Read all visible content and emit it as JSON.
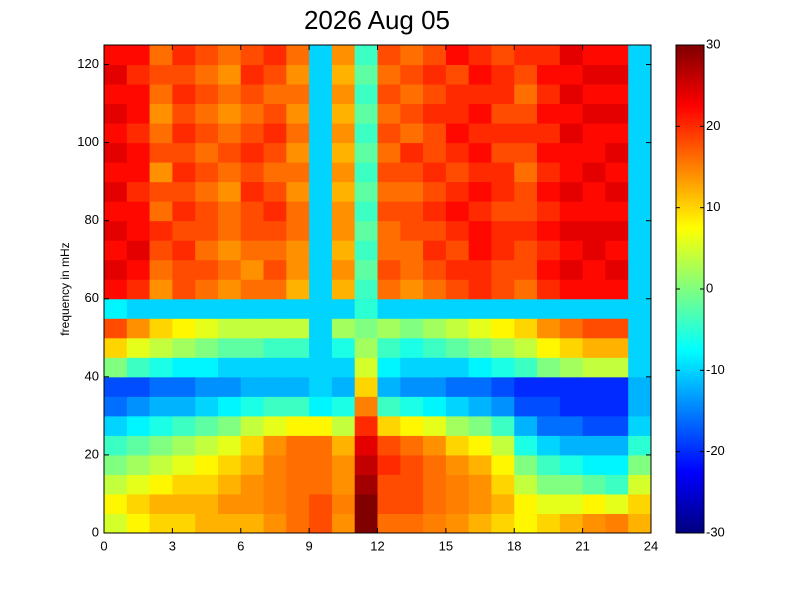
{
  "chart_data": {
    "type": "heatmap",
    "title": "2026 Aug 05",
    "ylabel": "frequency in mHz",
    "colormap": "jet",
    "xbins": [
      0,
      1,
      2,
      3,
      4,
      5,
      6,
      7,
      8,
      9,
      10,
      11,
      12,
      13,
      14,
      15,
      16,
      17,
      18,
      19,
      20,
      21,
      22,
      23,
      24
    ],
    "ybins": [
      0,
      5,
      10,
      15,
      20,
      25,
      30,
      35,
      40,
      45,
      50,
      55,
      60,
      65,
      70,
      75,
      80,
      85,
      90,
      95,
      100,
      105,
      110,
      115,
      120,
      125
    ],
    "z": [
      [
        5,
        8,
        10,
        10,
        12,
        12,
        12,
        14,
        16,
        18,
        14,
        30,
        16,
        16,
        15,
        14,
        12,
        10,
        8,
        10,
        12,
        14,
        15,
        12
      ],
      [
        8,
        10,
        12,
        12,
        12,
        14,
        14,
        15,
        16,
        18,
        15,
        30,
        18,
        18,
        16,
        15,
        14,
        12,
        8,
        6,
        6,
        8,
        6,
        10
      ],
      [
        4,
        6,
        8,
        10,
        10,
        12,
        14,
        15,
        16,
        16,
        14,
        28,
        18,
        18,
        16,
        15,
        14,
        10,
        4,
        0,
        0,
        -2,
        -4,
        5
      ],
      [
        0,
        2,
        4,
        6,
        8,
        10,
        12,
        15,
        16,
        16,
        14,
        26,
        20,
        18,
        16,
        14,
        12,
        8,
        0,
        -4,
        -6,
        -8,
        -8,
        0
      ],
      [
        -4,
        -2,
        0,
        2,
        4,
        6,
        10,
        14,
        16,
        16,
        12,
        24,
        18,
        16,
        14,
        10,
        8,
        4,
        -6,
        -10,
        -12,
        -12,
        -12,
        -5
      ],
      [
        -10,
        -8,
        -6,
        -4,
        -2,
        0,
        4,
        6,
        8,
        8,
        4,
        20,
        10,
        8,
        6,
        2,
        0,
        -4,
        -12,
        -16,
        -16,
        -18,
        -18,
        -10
      ],
      [
        -16,
        -14,
        -12,
        -12,
        -10,
        -8,
        -6,
        -4,
        -4,
        -8,
        -6,
        15,
        -4,
        -6,
        -8,
        -10,
        -12,
        -14,
        -18,
        -18,
        -20,
        -20,
        -20,
        -12
      ],
      [
        -18,
        -18,
        -16,
        -16,
        -14,
        -14,
        -12,
        -12,
        -12,
        -10,
        -12,
        10,
        -12,
        -14,
        -14,
        -16,
        -16,
        -18,
        -20,
        -20,
        -20,
        -20,
        -20,
        -12
      ],
      [
        0,
        -4,
        -6,
        -8,
        -8,
        -10,
        -10,
        -10,
        -10,
        -10,
        -10,
        5,
        -8,
        -10,
        -10,
        -10,
        -8,
        -6,
        -4,
        0,
        2,
        4,
        4,
        -10
      ],
      [
        10,
        6,
        4,
        2,
        0,
        -2,
        -2,
        -4,
        -4,
        -10,
        -6,
        2,
        -4,
        -6,
        -4,
        -2,
        0,
        2,
        4,
        8,
        10,
        12,
        12,
        -10
      ],
      [
        18,
        14,
        10,
        8,
        6,
        4,
        4,
        4,
        4,
        -10,
        2,
        0,
        2,
        0,
        2,
        4,
        6,
        8,
        10,
        14,
        16,
        18,
        18,
        -10
      ],
      [
        -8,
        -10,
        -10,
        -10,
        -10,
        -10,
        -10,
        -10,
        -10,
        -10,
        -10,
        -5,
        -10,
        -10,
        -10,
        -10,
        -10,
        -10,
        -10,
        -10,
        -10,
        -10,
        -10,
        -10
      ],
      [
        22,
        20,
        14,
        18,
        16,
        14,
        16,
        16,
        12,
        -10,
        12,
        -4,
        16,
        14,
        16,
        18,
        20,
        18,
        16,
        20,
        22,
        22,
        22,
        -10
      ],
      [
        24,
        22,
        16,
        18,
        18,
        16,
        14,
        18,
        14,
        -10,
        14,
        -2,
        18,
        16,
        18,
        20,
        20,
        18,
        18,
        22,
        24,
        22,
        24,
        -10
      ],
      [
        22,
        24,
        18,
        20,
        16,
        14,
        16,
        16,
        14,
        -10,
        12,
        -4,
        16,
        16,
        20,
        18,
        22,
        20,
        18,
        20,
        22,
        24,
        22,
        -10
      ],
      [
        24,
        22,
        20,
        18,
        18,
        16,
        18,
        18,
        16,
        -10,
        14,
        -2,
        16,
        18,
        18,
        20,
        22,
        20,
        20,
        22,
        24,
        24,
        24,
        -10
      ],
      [
        22,
        22,
        16,
        20,
        18,
        16,
        18,
        20,
        16,
        -10,
        14,
        -4,
        18,
        18,
        20,
        22,
        20,
        18,
        18,
        20,
        22,
        22,
        22,
        -10
      ],
      [
        24,
        20,
        18,
        18,
        16,
        14,
        20,
        18,
        14,
        -10,
        12,
        -2,
        16,
        16,
        18,
        20,
        22,
        20,
        18,
        22,
        24,
        22,
        24,
        -10
      ],
      [
        22,
        22,
        14,
        20,
        18,
        16,
        18,
        16,
        16,
        -10,
        14,
        -4,
        18,
        18,
        20,
        18,
        20,
        20,
        16,
        20,
        22,
        24,
        22,
        -10
      ],
      [
        24,
        22,
        18,
        18,
        16,
        18,
        20,
        18,
        14,
        -10,
        12,
        -2,
        16,
        20,
        18,
        20,
        22,
        18,
        18,
        22,
        22,
        22,
        24,
        -10
      ],
      [
        22,
        20,
        16,
        20,
        18,
        16,
        18,
        20,
        16,
        -10,
        14,
        -4,
        18,
        16,
        18,
        22,
        20,
        20,
        20,
        20,
        24,
        22,
        22,
        -10
      ],
      [
        24,
        22,
        14,
        18,
        16,
        14,
        16,
        18,
        14,
        -10,
        12,
        -2,
        16,
        18,
        20,
        20,
        22,
        18,
        18,
        22,
        22,
        24,
        24,
        -10
      ],
      [
        22,
        22,
        16,
        20,
        18,
        16,
        18,
        16,
        16,
        -10,
        14,
        -4,
        18,
        16,
        18,
        20,
        20,
        20,
        16,
        20,
        24,
        22,
        22,
        -10
      ],
      [
        24,
        20,
        18,
        18,
        16,
        14,
        20,
        18,
        14,
        -10,
        12,
        -2,
        16,
        18,
        20,
        18,
        22,
        20,
        18,
        22,
        22,
        24,
        24,
        -10
      ],
      [
        22,
        22,
        16,
        20,
        18,
        16,
        18,
        20,
        16,
        -10,
        14,
        -4,
        18,
        16,
        18,
        22,
        20,
        18,
        20,
        20,
        24,
        22,
        22,
        -10
      ]
    ],
    "xlim": [
      0,
      24
    ],
    "xticks": [
      0,
      3,
      6,
      9,
      12,
      15,
      18,
      21,
      24
    ],
    "ylim": [
      0,
      125
    ],
    "yticks": [
      0,
      20,
      40,
      60,
      80,
      100,
      120
    ],
    "clim": [
      -30,
      30
    ],
    "cticks": [
      -30,
      -20,
      -10,
      0,
      10,
      20,
      30
    ]
  }
}
